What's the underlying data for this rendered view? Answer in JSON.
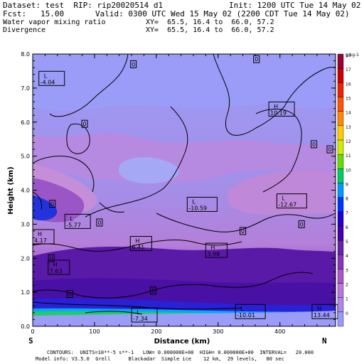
{
  "header": {
    "dataset": "Dataset: test  RIP: rip20020514 d1",
    "init": "Init: 1200 UTC Tue 14 May 02",
    "fcst": "Fcst:   15.00",
    "valid": "Valid: 0300 UTC Wed 15 May 02 (2200 CDT Tue 14 May 02)",
    "field1": "Water vapor mixing ratio",
    "xy1": "XY=  65.5, 16.4 to  66.0, 57.2",
    "field2": "Divergence",
    "xy2": "XY=  65.5, 16.4 to  66.0, 57.2"
  },
  "footer": {
    "line1": "CONTOURS:  UNITS=10**-5 s**-1   LOW= 0.000000E+00  HIGH= 0.000000E+00  INTERVAL=   20.000",
    "line2": "Model info: V3.5.0  Grell      Blackadar  Simple ice    12 km,  29 levels,   80 sec"
  },
  "orientation": {
    "left": "S",
    "right": "N"
  },
  "chart_data": {
    "type": "heatmap",
    "xlabel": "Distance (km)",
    "ylabel": "Height (km)",
    "xlim": [
      0,
      490
    ],
    "ylim": [
      0,
      8
    ],
    "x_ticks": [
      0,
      100,
      200,
      300,
      400
    ],
    "y_ticks": [
      "0.0",
      "1.0",
      "2.0",
      "3.0",
      "4.0",
      "5.0",
      "6.0",
      "7.0",
      "8.0"
    ],
    "colorbar": {
      "unit": "g kg-1",
      "labels": [
        "0",
        "1",
        "2",
        "3",
        "4",
        "5",
        "6",
        "7",
        "8",
        "9",
        "10",
        "11",
        "12",
        "13",
        "14",
        "15",
        "16",
        "17",
        "18"
      ],
      "colors": [
        "#9999ff",
        "#aa88ee",
        "#bb77dd",
        "#aa55cc",
        "#8833bb",
        "#6622aa",
        "#4400aa",
        "#2200cc",
        "#0033ff",
        "#0099ff",
        "#00cc66",
        "#66dd00",
        "#ccee00",
        "#ffcc00",
        "#ff8800",
        "#ff5500",
        "#ee2200",
        "#cc0000",
        "#990033"
      ]
    },
    "contour_labels": [
      {
        "text": "L",
        "sub": "-4.04",
        "x": 10,
        "y": 7.2
      },
      {
        "text": "H",
        "sub": "10.19",
        "x": 382,
        "y": 6.3
      },
      {
        "text": "L",
        "sub": "-10.59",
        "x": 250,
        "y": 3.5
      },
      {
        "text": "L",
        "sub": "-12.67",
        "x": 395,
        "y": 3.6
      },
      {
        "text": "L",
        "sub": "-5.77",
        "x": 52,
        "y": 3.0
      },
      {
        "text": "H",
        "sub": "4.17",
        "x": 0,
        "y": 2.55
      },
      {
        "text": "H",
        "sub": "6.41",
        "x": 158,
        "y": 2.35
      },
      {
        "text": "H",
        "sub": "3.98",
        "x": 280,
        "y": 2.15
      },
      {
        "text": "H",
        "sub": "7.63",
        "x": 25,
        "y": 1.65
      },
      {
        "text": "L",
        "sub": "-7.34",
        "x": 160,
        "y": 0.25
      },
      {
        "text": "L",
        "sub": "-10.01",
        "x": 328,
        "y": 0.35
      },
      {
        "text": "H",
        "sub": "13.44",
        "x": 452,
        "y": 0.35
      }
    ],
    "zero_labels": [
      {
        "x": 163,
        "y": 7.7
      },
      {
        "x": 362,
        "y": 7.85
      },
      {
        "x": 84,
        "y": 5.95
      },
      {
        "x": 455,
        "y": 5.35
      },
      {
        "x": 485,
        "y": 5.2
      },
      {
        "x": 32,
        "y": 3.6
      },
      {
        "x": 108,
        "y": 3.05
      },
      {
        "x": 435,
        "y": 3.0
      },
      {
        "x": 340,
        "y": 2.8
      },
      {
        "x": 30,
        "y": 2.0
      },
      {
        "x": 195,
        "y": 1.05
      },
      {
        "x": 60,
        "y": 0.95
      }
    ]
  }
}
